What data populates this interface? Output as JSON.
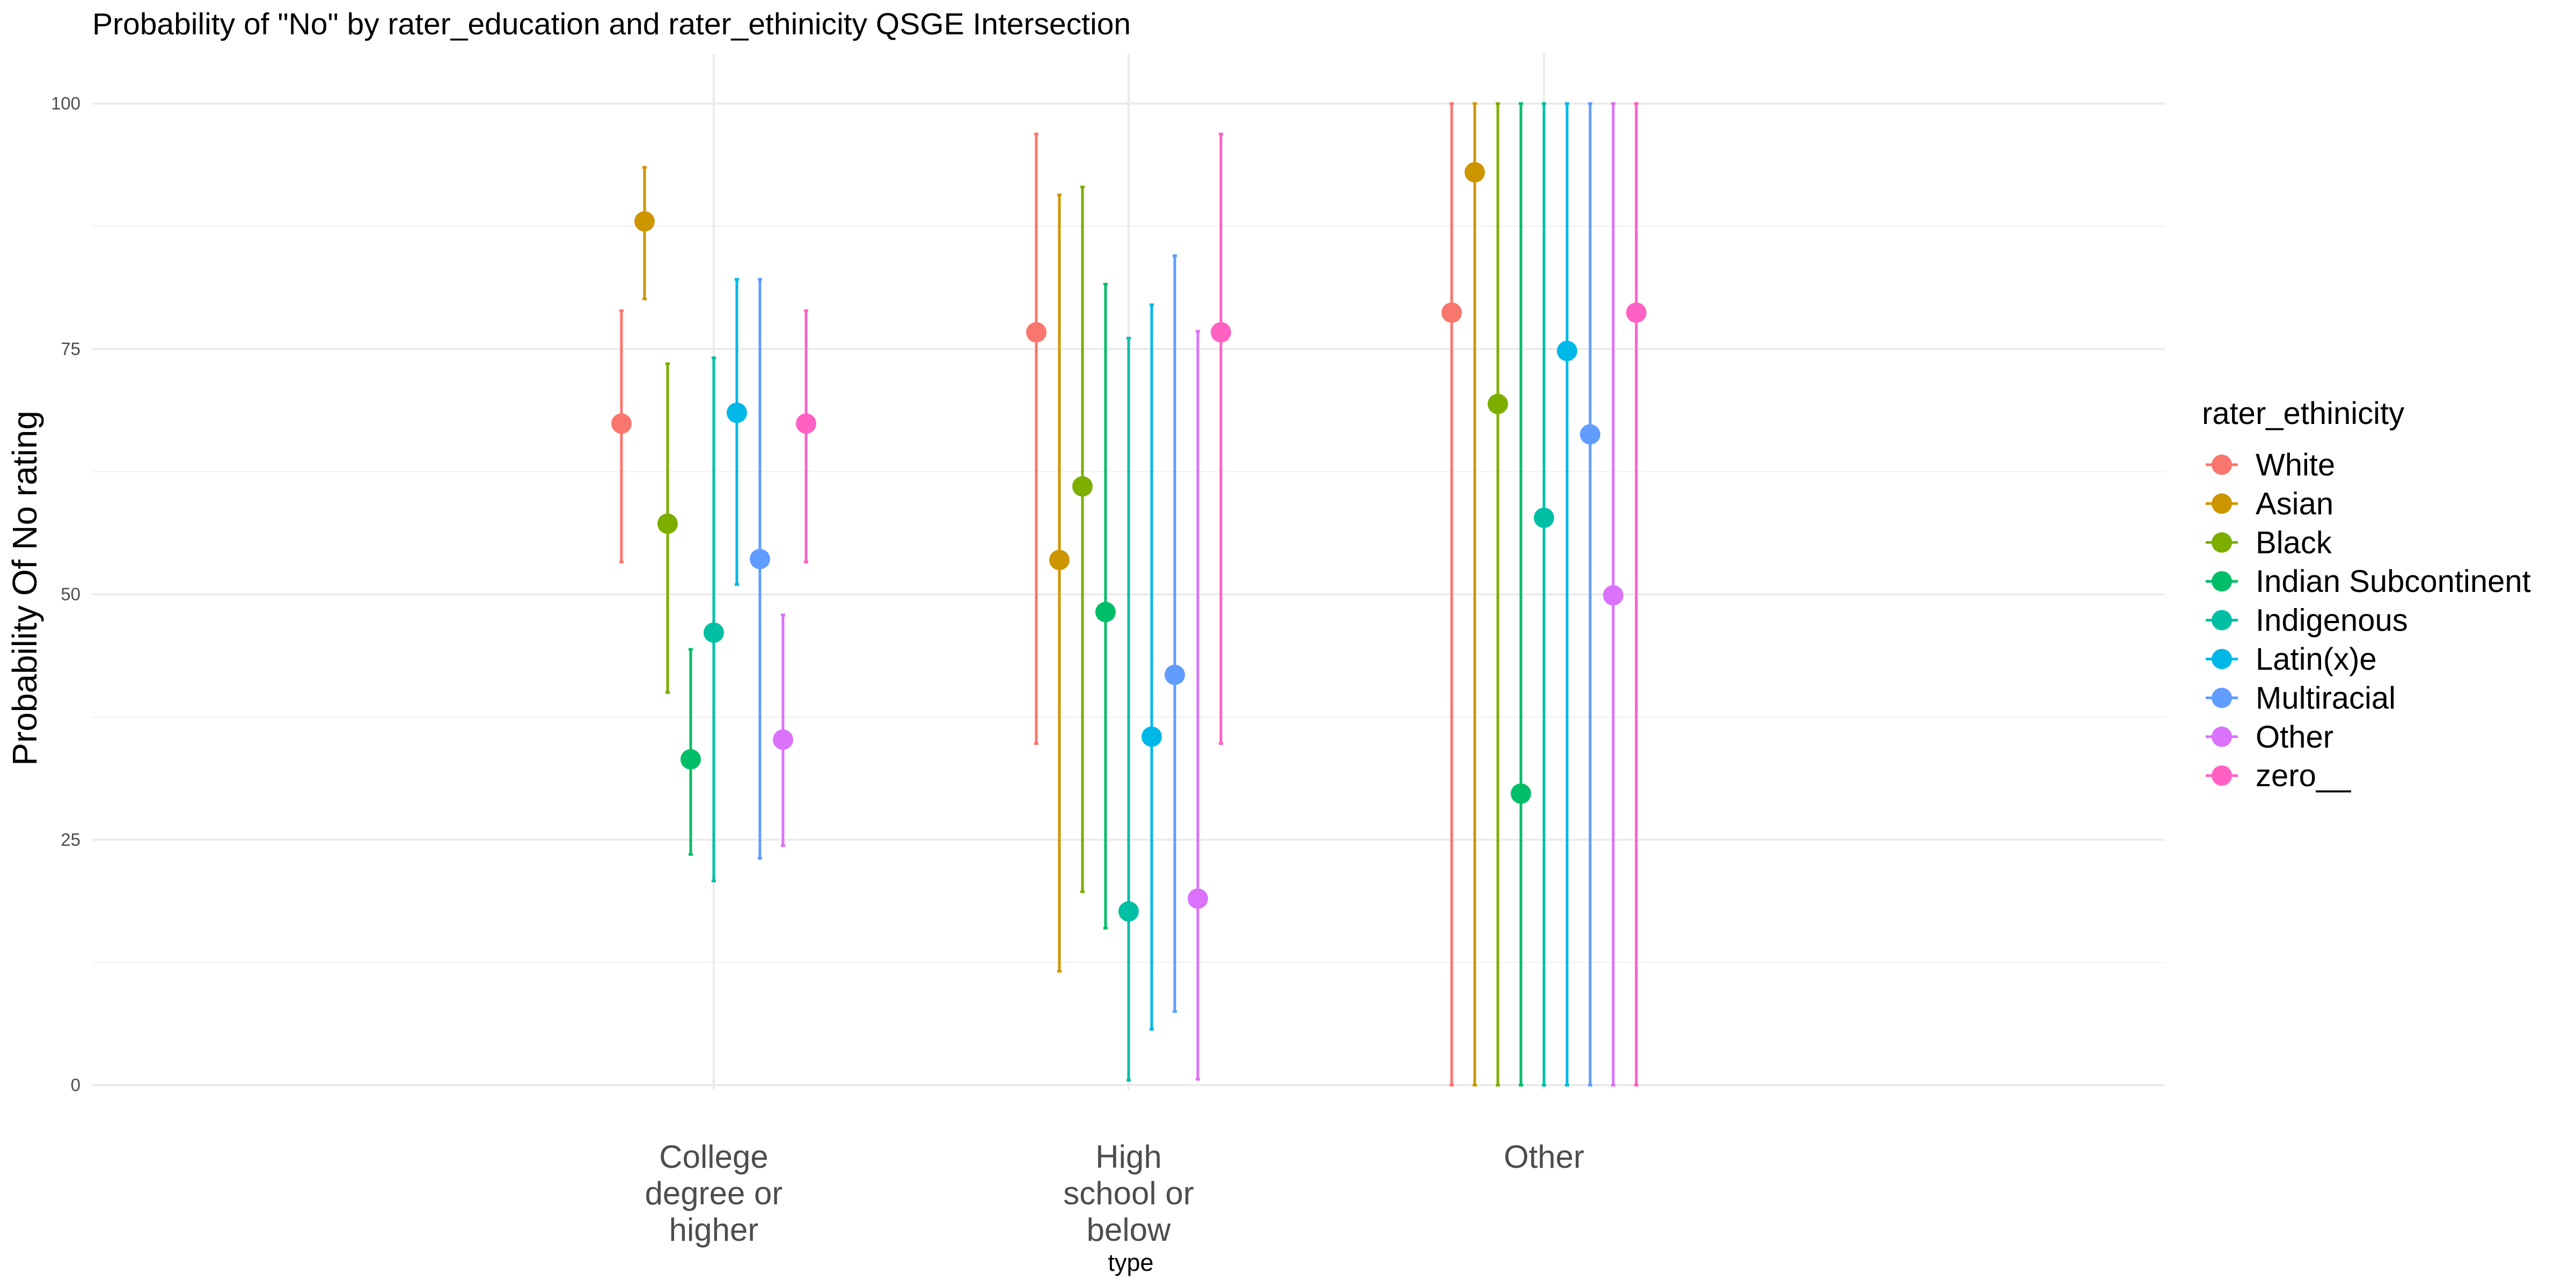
{
  "chart_data": {
    "type": "scatter",
    "title": "Probability of \"No\" by rater_education and  rater_ethinicity  QSGE Intersection",
    "xlabel": "type",
    "ylabel": "Probability Of No rating",
    "categories": [
      "College degree or higher",
      "High school or below",
      "Other"
    ],
    "category_lines": [
      [
        "College",
        "degree or",
        "higher"
      ],
      [
        "High",
        "school or",
        "below"
      ],
      [
        "Other"
      ]
    ],
    "ylim": [
      0,
      100
    ],
    "yticks": [
      "0",
      "25",
      "50",
      "75",
      "100"
    ],
    "legend_title": "rater_ethinicity",
    "legend_position": "right",
    "grid": true,
    "series": [
      {
        "name": "White",
        "color": "#F8766D",
        "values": [
          67.4,
          76.7,
          78.7
        ],
        "lower": [
          53.3,
          34.8,
          0
        ],
        "upper": [
          78.9,
          96.9,
          100
        ]
      },
      {
        "name": "Asian",
        "color": "#CD9600",
        "values": [
          88.0,
          53.5,
          93.0
        ],
        "lower": [
          80.1,
          11.6,
          0
        ],
        "upper": [
          93.5,
          90.7,
          100
        ]
      },
      {
        "name": "Black",
        "color": "#7CAE00",
        "values": [
          57.2,
          61.0,
          69.4
        ],
        "lower": [
          40.0,
          19.7,
          0
        ],
        "upper": [
          73.5,
          91.5,
          100
        ]
      },
      {
        "name": "Indian Subcontinent",
        "color": "#00BE67",
        "values": [
          33.2,
          48.2,
          29.7
        ],
        "lower": [
          23.5,
          16.0,
          0
        ],
        "upper": [
          44.4,
          81.6,
          100
        ]
      },
      {
        "name": "Indigenous",
        "color": "#00BFA4",
        "values": [
          46.1,
          17.7,
          57.8
        ],
        "lower": [
          20.8,
          0.5,
          0
        ],
        "upper": [
          74.1,
          76.1,
          100
        ]
      },
      {
        "name": "Latin(x)e",
        "color": "#00B8E7",
        "values": [
          68.5,
          35.5,
          74.8
        ],
        "lower": [
          51.0,
          5.7,
          0
        ],
        "upper": [
          82.1,
          79.5,
          100
        ]
      },
      {
        "name": "Multiracial",
        "color": "#619CFF",
        "values": [
          53.6,
          41.8,
          66.3
        ],
        "lower": [
          23.1,
          7.5,
          0
        ],
        "upper": [
          82.1,
          84.5,
          100
        ]
      },
      {
        "name": "Other",
        "color": "#DB72FB",
        "values": [
          35.2,
          19.0,
          49.9
        ],
        "lower": [
          24.4,
          0.6,
          0
        ],
        "upper": [
          47.9,
          76.8,
          100
        ]
      },
      {
        "name": "zero__",
        "color": "#FF61C3",
        "values": [
          67.4,
          76.7,
          78.7
        ],
        "lower": [
          53.3,
          34.8,
          0
        ],
        "upper": [
          78.9,
          96.9,
          100
        ]
      }
    ]
  }
}
